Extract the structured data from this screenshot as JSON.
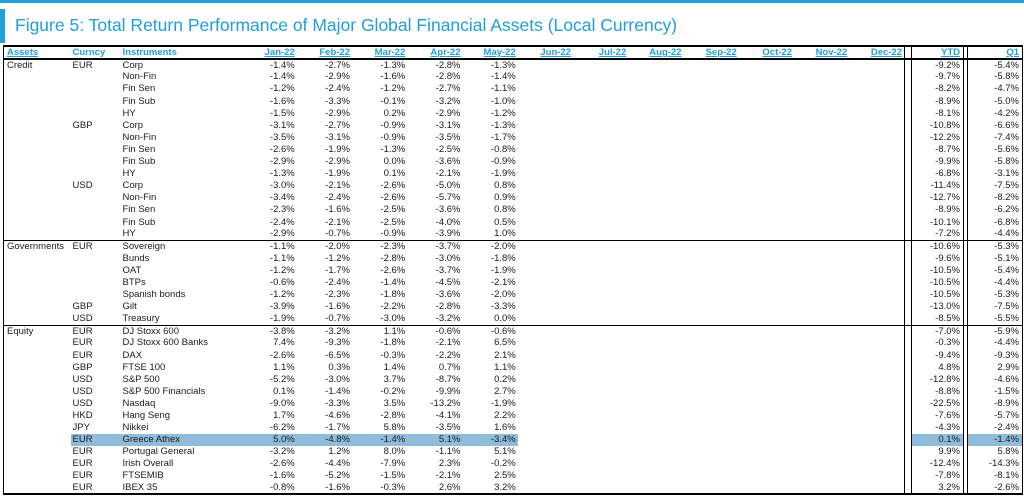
{
  "meta": {
    "accent_blue": "#219fda",
    "highlight_blue": "#8fbcda"
  },
  "figure": {
    "title": "Figure 5: Total Return Performance of Major Global Financial Assets (Local Currency)"
  },
  "table": {
    "headers": {
      "assets": "Assets",
      "curncy": "Curncy",
      "instruments": "Instruments",
      "months": [
        "Jan-22",
        "Feb-22",
        "Mar-22",
        "Apr-22",
        "May-22",
        "Jun-22",
        "Jul-22",
        "Aug-22",
        "Sep-22",
        "Oct-22",
        "Nov-22",
        "Dec-22"
      ],
      "ytd": "YTD",
      "q1": "Q1"
    },
    "sections": [
      {
        "asset": "Credit",
        "rows": [
          {
            "curncy": "EUR",
            "instrument": "Corp",
            "values": [
              "-1.4%",
              "-2.7%",
              "-1.3%",
              "-2.8%",
              "-1.3%"
            ],
            "ytd": "-9.2%",
            "q1": "-5.4%",
            "highlight": false
          },
          {
            "curncy": "",
            "instrument": "Non-Fin",
            "values": [
              "-1.4%",
              "-2.9%",
              "-1.6%",
              "-2.8%",
              "-1.4%"
            ],
            "ytd": "-9.7%",
            "q1": "-5.8%",
            "highlight": false
          },
          {
            "curncy": "",
            "instrument": "Fin Sen",
            "values": [
              "-1.2%",
              "-2.4%",
              "-1.2%",
              "-2.7%",
              "-1.1%"
            ],
            "ytd": "-8.2%",
            "q1": "-4.7%",
            "highlight": false
          },
          {
            "curncy": "",
            "instrument": "Fin Sub",
            "values": [
              "-1.6%",
              "-3.3%",
              "-0.1%",
              "-3.2%",
              "-1.0%"
            ],
            "ytd": "-8.9%",
            "q1": "-5.0%",
            "highlight": false
          },
          {
            "curncy": "",
            "instrument": "HY",
            "values": [
              "-1.5%",
              "-2.9%",
              "0.2%",
              "-2.9%",
              "-1.2%"
            ],
            "ytd": "-8.1%",
            "q1": "-4.2%",
            "highlight": false
          },
          {
            "curncy": "GBP",
            "instrument": "Corp",
            "values": [
              "-3.1%",
              "-2.7%",
              "-0.9%",
              "-3.1%",
              "-1.3%"
            ],
            "ytd": "-10.8%",
            "q1": "-6.6%",
            "highlight": false
          },
          {
            "curncy": "",
            "instrument": "Non-Fin",
            "values": [
              "-3.5%",
              "-3.1%",
              "-0.9%",
              "-3.5%",
              "-1.7%"
            ],
            "ytd": "-12.2%",
            "q1": "-7.4%",
            "highlight": false
          },
          {
            "curncy": "",
            "instrument": "Fin Sen",
            "values": [
              "-2.6%",
              "-1.9%",
              "-1.3%",
              "-2.5%",
              "-0.8%"
            ],
            "ytd": "-8.7%",
            "q1": "-5.6%",
            "highlight": false
          },
          {
            "curncy": "",
            "instrument": "Fin Sub",
            "values": [
              "-2.9%",
              "-2.9%",
              "0.0%",
              "-3.6%",
              "-0.9%"
            ],
            "ytd": "-9.9%",
            "q1": "-5.8%",
            "highlight": false
          },
          {
            "curncy": "",
            "instrument": "HY",
            "values": [
              "-1.3%",
              "-1.9%",
              "0.1%",
              "-2.1%",
              "-1.9%"
            ],
            "ytd": "-6.8%",
            "q1": "-3.1%",
            "highlight": false
          },
          {
            "curncy": "USD",
            "instrument": "Corp",
            "values": [
              "-3.0%",
              "-2.1%",
              "-2.6%",
              "-5.0%",
              "0.8%"
            ],
            "ytd": "-11.4%",
            "q1": "-7.5%",
            "highlight": false
          },
          {
            "curncy": "",
            "instrument": "Non-Fin",
            "values": [
              "-3.4%",
              "-2.4%",
              "-2.6%",
              "-5.7%",
              "0.9%"
            ],
            "ytd": "-12.7%",
            "q1": "-8.2%",
            "highlight": false
          },
          {
            "curncy": "",
            "instrument": "Fin Sen",
            "values": [
              "-2.3%",
              "-1.6%",
              "-2.5%",
              "-3.6%",
              "0.8%"
            ],
            "ytd": "-8.9%",
            "q1": "-6.2%",
            "highlight": false
          },
          {
            "curncy": "",
            "instrument": "Fin Sub",
            "values": [
              "-2.4%",
              "-2.1%",
              "-2.5%",
              "-4.0%",
              "0.5%"
            ],
            "ytd": "-10.1%",
            "q1": "-6.8%",
            "highlight": false
          },
          {
            "curncy": "",
            "instrument": "HY",
            "values": [
              "-2.9%",
              "-0.7%",
              "-0.9%",
              "-3.9%",
              "1.0%"
            ],
            "ytd": "-7.2%",
            "q1": "-4.4%",
            "highlight": false
          }
        ]
      },
      {
        "asset": "Governments",
        "rows": [
          {
            "curncy": "EUR",
            "instrument": "Sovereign",
            "values": [
              "-1.1%",
              "-2.0%",
              "-2.3%",
              "-3.7%",
              "-2.0%"
            ],
            "ytd": "-10.6%",
            "q1": "-5.3%",
            "highlight": false
          },
          {
            "curncy": "",
            "instrument": "Bunds",
            "values": [
              "-1.1%",
              "-1.2%",
              "-2.8%",
              "-3.0%",
              "-1.8%"
            ],
            "ytd": "-9.6%",
            "q1": "-5.1%",
            "highlight": false
          },
          {
            "curncy": "",
            "instrument": "OAT",
            "values": [
              "-1.2%",
              "-1.7%",
              "-2.6%",
              "-3.7%",
              "-1.9%"
            ],
            "ytd": "-10.5%",
            "q1": "-5.4%",
            "highlight": false
          },
          {
            "curncy": "",
            "instrument": "BTPs",
            "values": [
              "-0.6%",
              "-2.4%",
              "-1.4%",
              "-4.5%",
              "-2.1%"
            ],
            "ytd": "-10.5%",
            "q1": "-4.4%",
            "highlight": false
          },
          {
            "curncy": "",
            "instrument": "Spanish bonds",
            "values": [
              "-1.2%",
              "-2.3%",
              "-1.8%",
              "-3.6%",
              "-2.0%"
            ],
            "ytd": "-10.5%",
            "q1": "-5.3%",
            "highlight": false
          },
          {
            "curncy": "GBP",
            "instrument": "Gilt",
            "values": [
              "-3.9%",
              "-1.6%",
              "-2.2%",
              "-2.8%",
              "-3.3%"
            ],
            "ytd": "-13.0%",
            "q1": "-7.5%",
            "highlight": false
          },
          {
            "curncy": "USD",
            "instrument": "Treasury",
            "values": [
              "-1.9%",
              "-0.7%",
              "-3.0%",
              "-3.2%",
              "0.0%"
            ],
            "ytd": "-8.5%",
            "q1": "-5.5%",
            "highlight": false
          }
        ]
      },
      {
        "asset": "Equity",
        "rows": [
          {
            "curncy": "EUR",
            "instrument": "DJ Stoxx 600",
            "values": [
              "-3.8%",
              "-3.2%",
              "1.1%",
              "-0.6%",
              "-0.6%"
            ],
            "ytd": "-7.0%",
            "q1": "-5.9%",
            "highlight": false
          },
          {
            "curncy": "EUR",
            "instrument": "DJ Stoxx 600 Banks",
            "values": [
              "7.4%",
              "-9.3%",
              "-1.8%",
              "-2.1%",
              "6.5%"
            ],
            "ytd": "-0.3%",
            "q1": "-4.4%",
            "highlight": false
          },
          {
            "curncy": "EUR",
            "instrument": "DAX",
            "values": [
              "-2.6%",
              "-6.5%",
              "-0.3%",
              "-2.2%",
              "2.1%"
            ],
            "ytd": "-9.4%",
            "q1": "-9.3%",
            "highlight": false
          },
          {
            "curncy": "GBP",
            "instrument": "FTSE 100",
            "values": [
              "1.1%",
              "0.3%",
              "1.4%",
              "0.7%",
              "1.1%"
            ],
            "ytd": "4.8%",
            "q1": "2.9%",
            "highlight": false
          },
          {
            "curncy": "USD",
            "instrument": "S&P 500",
            "values": [
              "-5.2%",
              "-3.0%",
              "3.7%",
              "-8.7%",
              "0.2%"
            ],
            "ytd": "-12.8%",
            "q1": "-4.6%",
            "highlight": false
          },
          {
            "curncy": "USD",
            "instrument": "S&P 500 Financials",
            "values": [
              "0.1%",
              "-1.4%",
              "-0.2%",
              "-9.9%",
              "2.7%"
            ],
            "ytd": "-8.8%",
            "q1": "-1.5%",
            "highlight": false
          },
          {
            "curncy": "USD",
            "instrument": "Nasdaq",
            "values": [
              "-9.0%",
              "-3.3%",
              "3.5%",
              "-13.2%",
              "-1.9%"
            ],
            "ytd": "-22.5%",
            "q1": "-8.9%",
            "highlight": false
          },
          {
            "curncy": "HKD",
            "instrument": "Hang Seng",
            "values": [
              "1.7%",
              "-4.6%",
              "-2.8%",
              "-4.1%",
              "2.2%"
            ],
            "ytd": "-7.6%",
            "q1": "-5.7%",
            "highlight": false
          },
          {
            "curncy": "JPY",
            "instrument": "Nikkei",
            "values": [
              "-6.2%",
              "-1.7%",
              "5.8%",
              "-3.5%",
              "1.6%"
            ],
            "ytd": "-4.3%",
            "q1": "-2.4%",
            "highlight": false
          },
          {
            "curncy": "EUR",
            "instrument": "Greece Athex",
            "values": [
              "5.0%",
              "-4.8%",
              "-1.4%",
              "5.1%",
              "-3.4%"
            ],
            "ytd": "0.1%",
            "q1": "-1.4%",
            "highlight": true
          },
          {
            "curncy": "EUR",
            "instrument": "Portugal General",
            "values": [
              "-3.2%",
              "1.2%",
              "8.0%",
              "-1.1%",
              "5.1%"
            ],
            "ytd": "9.9%",
            "q1": "5.8%",
            "highlight": false
          },
          {
            "curncy": "EUR",
            "instrument": "Irish Overall",
            "values": [
              "-2.6%",
              "-4.4%",
              "-7.9%",
              "2.3%",
              "-0.2%"
            ],
            "ytd": "-12.4%",
            "q1": "-14.3%",
            "highlight": false
          },
          {
            "curncy": "EUR",
            "instrument": "FTSEMIB",
            "values": [
              "-1.6%",
              "-5.2%",
              "-1.5%",
              "-2.1%",
              "2.5%"
            ],
            "ytd": "-7.8%",
            "q1": "-8.1%",
            "highlight": false
          },
          {
            "curncy": "EUR",
            "instrument": "IBEX 35",
            "values": [
              "-0.8%",
              "-1.6%",
              "-0.3%",
              "2.6%",
              "3.2%"
            ],
            "ytd": "3.2%",
            "q1": "-2.6%",
            "highlight": false
          }
        ]
      }
    ]
  }
}
